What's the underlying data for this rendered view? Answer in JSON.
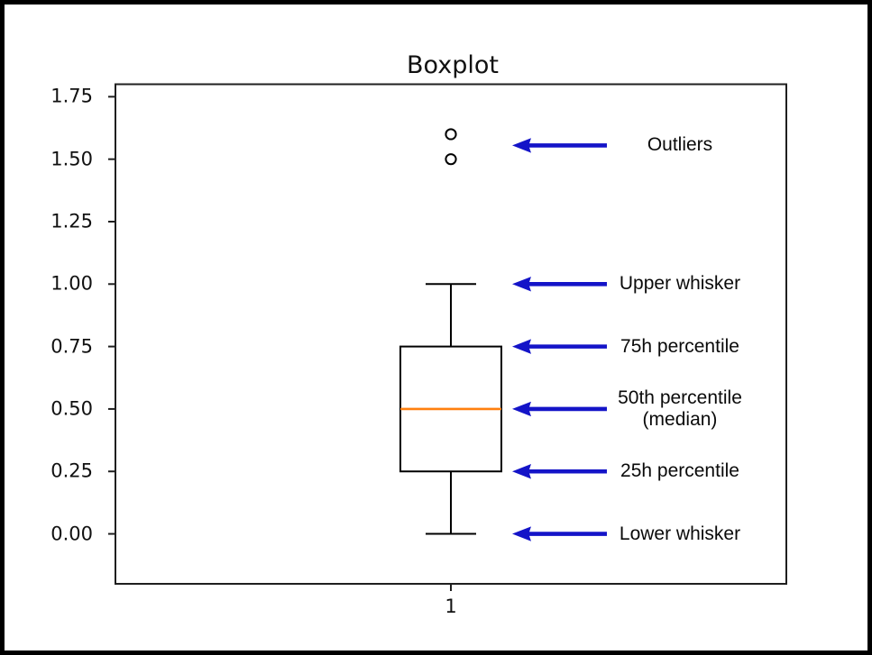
{
  "figure": {
    "background": "#ffffff",
    "outer_border_color": "#000000",
    "spine_color": "#1f1f1f"
  },
  "chart_data": {
    "type": "boxplot",
    "title": "Boxplot",
    "xlabel": "",
    "ylabel": "",
    "categories": [
      "1"
    ],
    "series": [
      {
        "name": "1",
        "whisker_low": 0.0,
        "q1": 0.25,
        "median": 0.5,
        "q3": 0.75,
        "whisker_high": 1.0,
        "outliers": [
          1.5,
          1.6
        ]
      }
    ],
    "ylim": [
      -0.2,
      1.8
    ],
    "ytick_labels": [
      "0.00",
      "0.25",
      "0.50",
      "0.75",
      "1.00",
      "1.25",
      "1.50",
      "1.75"
    ],
    "ytick_values": [
      0,
      0.25,
      0.5,
      0.75,
      1.0,
      1.25,
      1.5,
      1.75
    ],
    "grid": false,
    "legend": "none",
    "box_line_color": "#000000",
    "median_line_color": "#ff7f0e",
    "outlier_edge_color": "#000000"
  },
  "annotations": {
    "arrow_color": "#1414c8",
    "items": [
      {
        "label": "Outliers",
        "lines": [
          "Outliers"
        ],
        "value": 1.555
      },
      {
        "label": "Upper whisker",
        "lines": [
          "Upper whisker"
        ],
        "value": 1.0
      },
      {
        "label": "75h percentile",
        "lines": [
          "75h percentile"
        ],
        "value": 0.75
      },
      {
        "label": "50th percentile (median)",
        "lines": [
          "50th percentile",
          "(median)"
        ],
        "value": 0.5
      },
      {
        "label": "25h percentile",
        "lines": [
          "25h percentile"
        ],
        "value": 0.25
      },
      {
        "label": "Lower whisker",
        "lines": [
          "Lower whisker"
        ],
        "value": 0.0
      }
    ]
  }
}
